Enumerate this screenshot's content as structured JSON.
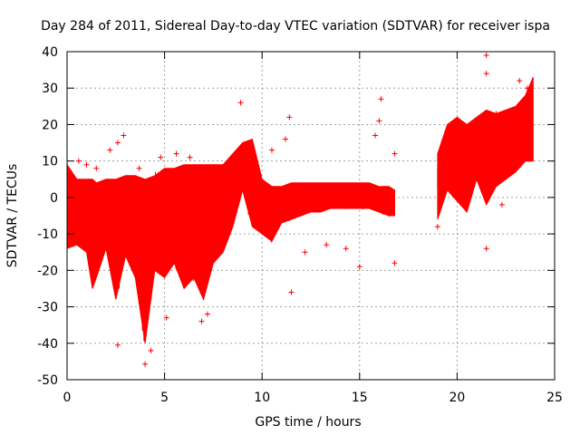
{
  "chart_data": {
    "type": "scatter",
    "title": "Day 284 of 2011, Sidereal Day-to-day VTEC variation (SDTVAR) for receiver ispa",
    "xlabel": "GPS time / hours",
    "ylabel": "SDTVAR / TECUs",
    "xlim": [
      0,
      25
    ],
    "ylim": [
      -50,
      40
    ],
    "xticks": [
      0,
      5,
      10,
      15,
      20,
      25
    ],
    "yticks": [
      -50,
      -40,
      -30,
      -20,
      -10,
      0,
      10,
      20,
      30,
      40
    ],
    "xtick_labels": [
      "0",
      "5",
      "10",
      "15",
      "20",
      "25"
    ],
    "ytick_labels": [
      "-50",
      "-40",
      "-30",
      "-20",
      "-10",
      "0",
      "10",
      "20",
      "30",
      "40"
    ],
    "grid": true,
    "marker": "+",
    "color": "#ff0000",
    "series": [
      {
        "name": "SDTVAR",
        "segments": [
          {
            "x_start": 0.0,
            "x_end": 16.8,
            "x": [
              0.0,
              0.5,
              1.0,
              1.3,
              1.5,
              2.0,
              2.5,
              3.0,
              3.5,
              4.0,
              4.5,
              5.0,
              5.5,
              6.0,
              6.5,
              7.0,
              7.5,
              8.0,
              8.5,
              9.0,
              9.5,
              10.0,
              10.5,
              11.0,
              11.5,
              12.0,
              12.5,
              13.0,
              13.5,
              14.0,
              14.5,
              15.0,
              15.5,
              16.0,
              16.5,
              16.8
            ],
            "upper": [
              9,
              5,
              5,
              5,
              4,
              5,
              5,
              6,
              6,
              5,
              6,
              8,
              8,
              9,
              9,
              9,
              9,
              9,
              12,
              15,
              16,
              5,
              3,
              3,
              4,
              4,
              4,
              4,
              4,
              4,
              4,
              4,
              4,
              3,
              3,
              2
            ],
            "lower": [
              -14,
              -13,
              -15,
              -25,
              -22,
              -14,
              -28,
              -16,
              -22,
              -40,
              -20,
              -22,
              -18,
              -25,
              -22,
              -28,
              -18,
              -15,
              -8,
              2,
              -8,
              -10,
              -12,
              -7,
              -6,
              -5,
              -4,
              -4,
              -3,
              -3,
              -3,
              -3,
              -3,
              -4,
              -5,
              -5
            ]
          },
          {
            "x_start": 19.0,
            "x_end": 23.9,
            "x": [
              19.0,
              19.5,
              20.0,
              20.5,
              21.0,
              21.5,
              22.0,
              22.5,
              23.0,
              23.5,
              23.9
            ],
            "upper": [
              12,
              20,
              22,
              20,
              22,
              24,
              23,
              24,
              25,
              28,
              33
            ],
            "lower": [
              -6,
              2,
              -1,
              -4,
              5,
              -2,
              3,
              5,
              7,
              10,
              10
            ]
          }
        ],
        "outliers": [
          [
            0.6,
            10
          ],
          [
            1.0,
            9
          ],
          [
            1.5,
            8
          ],
          [
            2.2,
            13
          ],
          [
            2.6,
            15
          ],
          [
            2.9,
            17
          ],
          [
            2.6,
            -40.5
          ],
          [
            3.7,
            8
          ],
          [
            4.0,
            -45.7
          ],
          [
            4.3,
            -42
          ],
          [
            4.8,
            11
          ],
          [
            5.1,
            -33
          ],
          [
            5.6,
            12
          ],
          [
            6.3,
            11
          ],
          [
            6.9,
            -34
          ],
          [
            7.2,
            -32
          ],
          [
            8.4,
            9
          ],
          [
            8.9,
            26
          ],
          [
            8.6,
            8
          ],
          [
            9.3,
            15
          ],
          [
            10.5,
            13
          ],
          [
            11.2,
            16
          ],
          [
            11.4,
            22
          ],
          [
            11.5,
            -26
          ],
          [
            12.2,
            -15
          ],
          [
            13.3,
            -13
          ],
          [
            14.3,
            -14
          ],
          [
            15.0,
            -19
          ],
          [
            15.8,
            17
          ],
          [
            16.0,
            21
          ],
          [
            16.1,
            27
          ],
          [
            16.8,
            -18
          ],
          [
            16.8,
            12
          ],
          [
            19.0,
            -8
          ],
          [
            20.6,
            16
          ],
          [
            21.5,
            34
          ],
          [
            21.5,
            39
          ],
          [
            21.5,
            -14
          ],
          [
            22.0,
            23
          ],
          [
            22.3,
            -2
          ],
          [
            23.2,
            32
          ],
          [
            23.6,
            30
          ]
        ]
      }
    ]
  }
}
